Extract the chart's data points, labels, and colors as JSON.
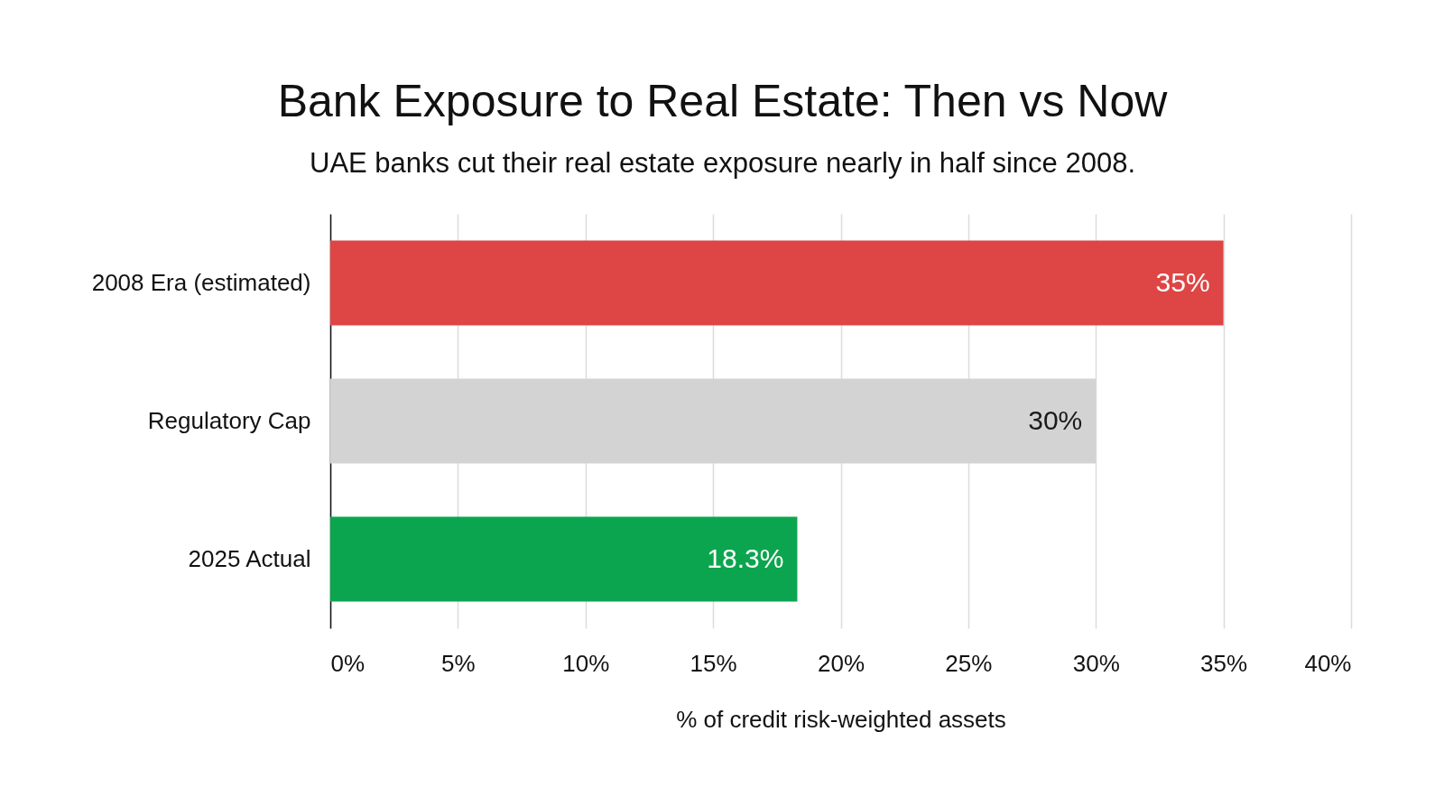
{
  "chart_data": {
    "type": "bar",
    "orientation": "horizontal",
    "title": "Bank Exposure to Real Estate: Then vs Now",
    "subtitle": "UAE banks cut their real estate exposure nearly in half since 2008.",
    "categories": [
      "2008 Era (estimated)",
      "Regulatory Cap",
      "2025 Actual"
    ],
    "values": [
      35,
      30,
      18.3
    ],
    "colors": [
      "#de4545",
      "#d3d3d3",
      "#0ca54f"
    ],
    "value_labels": [
      "35%",
      "30%",
      "18.3%"
    ],
    "xlabel": "% of credit risk-weighted assets",
    "xlim": [
      0,
      40
    ],
    "xticks": [
      {
        "value": 0,
        "label": "0%"
      },
      {
        "value": 5,
        "label": "5%"
      },
      {
        "value": 10,
        "label": "10%"
      },
      {
        "value": 15,
        "label": "15%"
      },
      {
        "value": 20,
        "label": "20%"
      },
      {
        "value": 25,
        "label": "25%"
      },
      {
        "value": 30,
        "label": "30%"
      },
      {
        "value": 35,
        "label": "35%"
      },
      {
        "value": 40,
        "label": "40%"
      }
    ],
    "grid": "x"
  }
}
